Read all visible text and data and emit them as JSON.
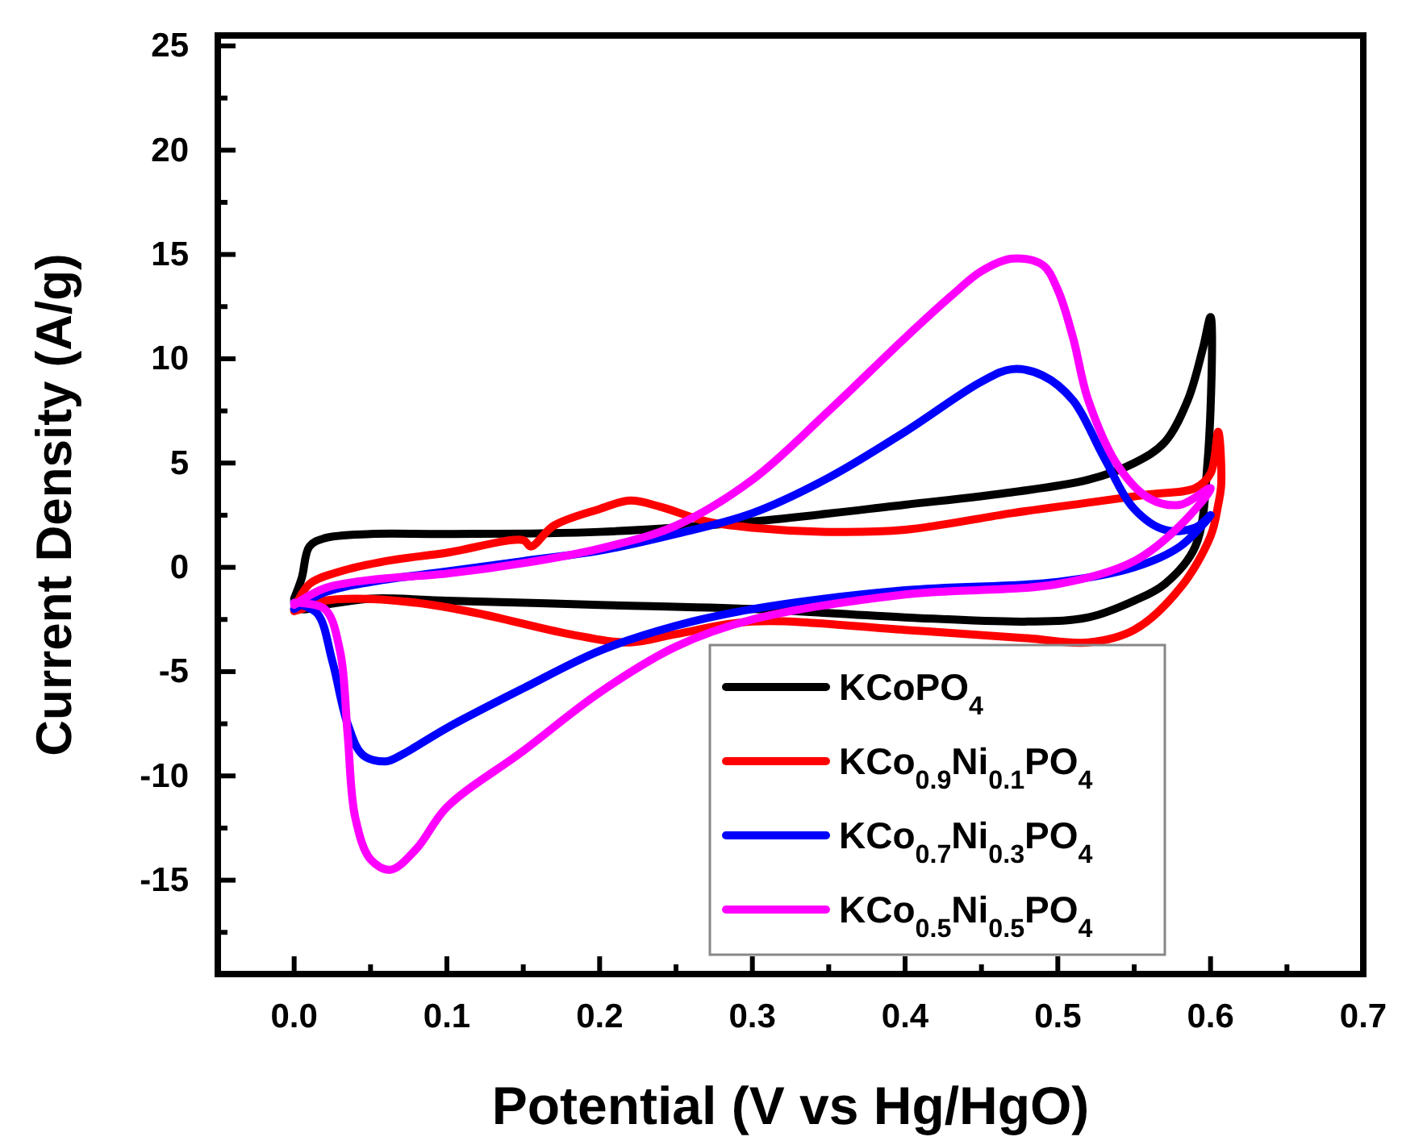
{
  "chart_data": {
    "type": "line",
    "xlabel": "Potential (V vs Hg/HgO)",
    "ylabel": "Current Density (A/g)",
    "xlim": [
      -0.05,
      0.7
    ],
    "xticks": [
      {
        "value": 0,
        "label": "0.0"
      },
      {
        "value": 0.05,
        "label": null
      },
      {
        "value": 0.1,
        "label": "0.1"
      },
      {
        "value": 0.15,
        "label": null
      },
      {
        "value": 0.2,
        "label": "0.2"
      },
      {
        "value": 0.25,
        "label": null
      },
      {
        "value": 0.3,
        "label": "0.3"
      },
      {
        "value": 0.35,
        "label": null
      },
      {
        "value": 0.4,
        "label": "0.4"
      },
      {
        "value": 0.45,
        "label": null
      },
      {
        "value": 0.5,
        "label": "0.5"
      },
      {
        "value": 0.55,
        "label": null
      },
      {
        "value": 0.6,
        "label": "0.6"
      },
      {
        "value": 0.65,
        "label": null
      },
      {
        "value": 0.7,
        "label": "0.7"
      }
    ],
    "ylim": [
      -19.5,
      25.5
    ],
    "yticks": [
      {
        "value": -17.5,
        "label": null
      },
      -15,
      {
        "value": -12.5,
        "label": null
      },
      -10,
      {
        "value": -7.5,
        "label": null
      },
      -5,
      {
        "value": -2.5,
        "label": null
      },
      0,
      {
        "value": 2.5,
        "label": null
      },
      5,
      {
        "value": 7.5,
        "label": null
      },
      10,
      {
        "value": 12.5,
        "label": null
      },
      15,
      {
        "value": 17.5,
        "label": null
      },
      20,
      {
        "value": 22.5,
        "label": null
      },
      25
    ],
    "grid": false,
    "legend": "bottom right",
    "line_style": "solid",
    "marker": "none",
    "series": [
      {
        "name": "KCoPO$_{4}$",
        "color": "#000000",
        "x": [
          0,
          0.005,
          0.01,
          0.02,
          0.05,
          0.1,
          0.2,
          0.3,
          0.4,
          0.47,
          0.52,
          0.55,
          0.57,
          0.585,
          0.595,
          0.6,
          0.598,
          0.59,
          0.57,
          0.55,
          0.52,
          0.48,
          0.4,
          0.3,
          0.2,
          0.1,
          0.05,
          0.02,
          0.005,
          0
        ],
        "values": [
          -1.5,
          -0.5,
          1.0,
          1.4,
          1.6,
          1.6,
          1.7,
          2.2,
          3.0,
          3.6,
          4.2,
          5.0,
          6.0,
          8.0,
          10.5,
          12.0,
          5.0,
          1.0,
          -0.8,
          -1.6,
          -2.4,
          -2.6,
          -2.4,
          -2.0,
          -1.8,
          -1.6,
          -1.5,
          -1.8,
          -2.0,
          -1.6
        ]
      },
      {
        "name": "KCo$_{0.9}$Ni$_{0.1}$PO$_{4}$",
        "color": "#ff0000",
        "x": [
          0,
          0.01,
          0.03,
          0.06,
          0.1,
          0.15,
          0.155,
          0.17,
          0.2,
          0.22,
          0.24,
          0.27,
          0.3,
          0.35,
          0.4,
          0.47,
          0.52,
          0.56,
          0.59,
          0.6,
          0.605,
          0.607,
          0.605,
          0.6,
          0.58,
          0.55,
          0.52,
          0.48,
          0.4,
          0.3,
          0.25,
          0.22,
          0.18,
          0.12,
          0.08,
          0.04,
          0.02,
          0.005,
          0
        ],
        "values": [
          -2.0,
          -0.8,
          -0.2,
          0.3,
          0.7,
          1.3,
          1.0,
          2.0,
          2.8,
          3.2,
          2.9,
          2.2,
          1.9,
          1.7,
          1.8,
          2.6,
          3.1,
          3.5,
          3.8,
          4.5,
          6.5,
          4.0,
          3.0,
          1.5,
          -1.0,
          -3.0,
          -3.6,
          -3.4,
          -3.0,
          -2.6,
          -3.2,
          -3.6,
          -3.2,
          -2.2,
          -1.7,
          -1.5,
          -1.6,
          -2.0,
          -2.1
        ]
      },
      {
        "name": "KCo$_{0.7}$Ni$_{0.3}$PO$_{4}$",
        "color": "#0000ff",
        "x": [
          0,
          0.02,
          0.05,
          0.1,
          0.15,
          0.2,
          0.25,
          0.3,
          0.35,
          0.4,
          0.45,
          0.47,
          0.49,
          0.51,
          0.53,
          0.55,
          0.57,
          0.59,
          0.6,
          0.58,
          0.55,
          0.5,
          0.4,
          0.3,
          0.25,
          0.2,
          0.15,
          0.1,
          0.07,
          0.06,
          0.045,
          0.035,
          0.025,
          0.015,
          0
        ],
        "values": [
          -2.0,
          -1.2,
          -0.7,
          -0.2,
          0.3,
          0.8,
          1.6,
          2.6,
          4.3,
          6.5,
          8.9,
          9.5,
          9.2,
          8.0,
          5.3,
          2.8,
          1.8,
          1.9,
          2.5,
          1.0,
          0.0,
          -0.7,
          -1.1,
          -2.0,
          -2.8,
          -4.0,
          -5.8,
          -7.7,
          -9.0,
          -9.3,
          -9.0,
          -7.5,
          -4.5,
          -2.2,
          -1.7
        ]
      },
      {
        "name": "KCo$_{0.5}$Ni$_{0.5}$PO$_{4}$",
        "color": "#ff00ff",
        "x": [
          0,
          0.02,
          0.05,
          0.1,
          0.15,
          0.2,
          0.25,
          0.3,
          0.35,
          0.4,
          0.43,
          0.45,
          0.47,
          0.49,
          0.5,
          0.51,
          0.52,
          0.54,
          0.56,
          0.58,
          0.6,
          0.58,
          0.55,
          0.5,
          0.4,
          0.3,
          0.25,
          0.2,
          0.15,
          0.1,
          0.08,
          0.063,
          0.05,
          0.04,
          0.035,
          0.03,
          0.02,
          0
        ],
        "values": [
          -1.8,
          -1.0,
          -0.6,
          -0.3,
          0.2,
          0.9,
          2.0,
          4.2,
          7.5,
          11.0,
          13.0,
          14.2,
          14.8,
          14.5,
          13.3,
          11.0,
          8.0,
          4.8,
          3.3,
          3.0,
          3.8,
          2.0,
          0.3,
          -0.8,
          -1.3,
          -2.5,
          -3.8,
          -6.0,
          -8.8,
          -11.5,
          -13.5,
          -14.5,
          -14.0,
          -12.0,
          -8.0,
          -4.0,
          -2.0,
          -1.7
        ]
      }
    ]
  }
}
